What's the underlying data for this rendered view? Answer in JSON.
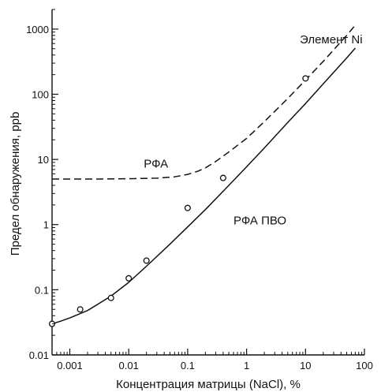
{
  "chart_data": {
    "type": "line",
    "xscale": "log",
    "yscale": "log",
    "xlim": [
      0.0005,
      100
    ],
    "ylim": [
      0.01,
      2000
    ],
    "xlabel": "Концентрация матрицы (NaCl), %",
    "ylabel": "Предел обнаружения, ppb",
    "grid": false,
    "x_ticks": [
      {
        "v": 0.001,
        "label": "0.001"
      },
      {
        "v": 0.01,
        "label": "0.01"
      },
      {
        "v": 0.1,
        "label": "0.1"
      },
      {
        "v": 1,
        "label": "1"
      },
      {
        "v": 10,
        "label": "10"
      },
      {
        "v": 100,
        "label": "100"
      }
    ],
    "y_ticks": [
      {
        "v": 0.01,
        "label": "0.01"
      },
      {
        "v": 0.1,
        "label": "0.1"
      },
      {
        "v": 1,
        "label": "1"
      },
      {
        "v": 10,
        "label": "10"
      },
      {
        "v": 100,
        "label": "100"
      },
      {
        "v": 1000,
        "label": "1000"
      }
    ],
    "annotations": [
      {
        "text": "Элемент Ni",
        "x": 8,
        "y": 600
      },
      {
        "text": "РФА",
        "x": 0.018,
        "y": 7.5
      },
      {
        "text": "РФА ПВО",
        "x": 0.6,
        "y": 1.0
      }
    ],
    "series": [
      {
        "style": "dashed",
        "x": [
          0.0005,
          0.001,
          0.003,
          0.01,
          0.03,
          0.06,
          0.1,
          0.15,
          0.2,
          0.3,
          0.5,
          1,
          2,
          5,
          10,
          20,
          50,
          70
        ],
        "y": [
          5,
          5,
          5,
          5.05,
          5.15,
          5.4,
          5.9,
          6.6,
          7.4,
          9.3,
          13,
          21,
          38,
          86,
          165,
          320,
          800,
          1150
        ]
      },
      {
        "style": "solid",
        "x": [
          0.0005,
          0.0007,
          0.001,
          0.002,
          0.005,
          0.01,
          0.02,
          0.05,
          0.1,
          0.2,
          0.5,
          1,
          2,
          5,
          10,
          20,
          50,
          70
        ],
        "y": [
          0.03,
          0.033,
          0.037,
          0.048,
          0.08,
          0.13,
          0.23,
          0.5,
          0.92,
          1.7,
          4.0,
          7.7,
          15,
          37,
          72,
          145,
          360,
          510
        ]
      },
      {
        "style": "points",
        "marker": "open-circle",
        "x": [
          0.0005,
          0.0015,
          0.005,
          0.01,
          0.02,
          0.1,
          0.4,
          10
        ],
        "y": [
          0.03,
          0.05,
          0.075,
          0.15,
          0.28,
          1.8,
          5.2,
          175
        ]
      }
    ]
  }
}
